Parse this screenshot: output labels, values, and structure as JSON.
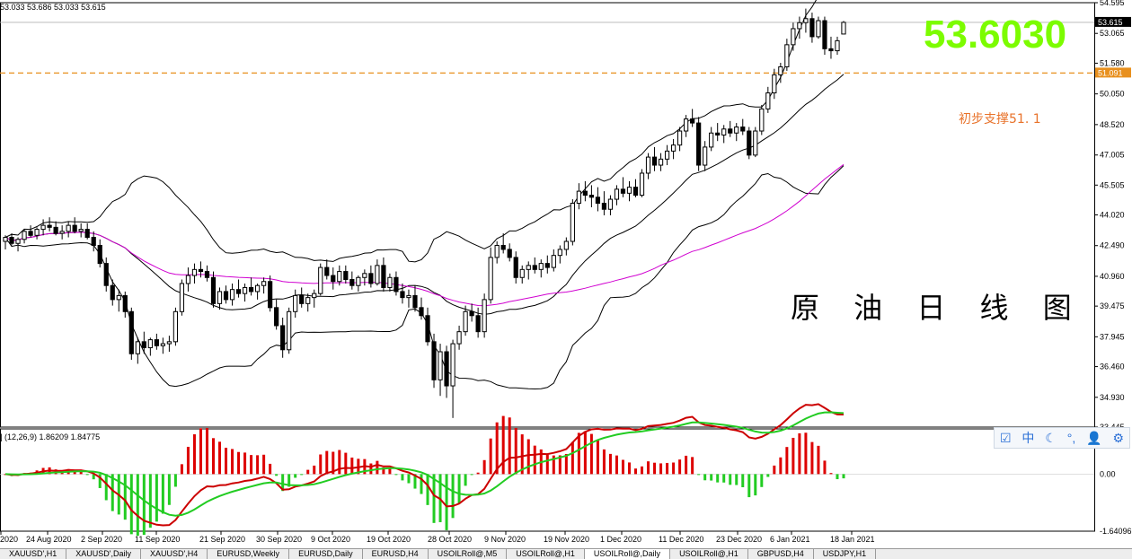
{
  "header": {
    "ohlc": "53.033 53.686 53.033 53.615",
    "macd": "(12,26,9) 1.86209 1.84775"
  },
  "overlay": {
    "big_price": "53.6030",
    "support_note": "初步支撑51. 1",
    "chart_title_cn": "原 油 日 线 图"
  },
  "colors": {
    "background": "#ffffff",
    "candle": "#000000",
    "bollinger": "#000000",
    "ma": "#d000d0",
    "support_line": "#e8901e",
    "macd_fast": "#cc0000",
    "macd_signal": "#22cc22",
    "hist_pos": "#dd0000",
    "hist_neg": "#22cc22",
    "big_price": "#7cfc00"
  },
  "toolbar": {
    "icons": [
      "checkbox-icon",
      "chinese-input-icon",
      "moon-icon",
      "punctuation-icon",
      "user-icon",
      "settings-icon"
    ],
    "labels": [
      "☑",
      "中",
      "☾",
      "°,",
      "👤",
      "⚙"
    ]
  },
  "tabs": [
    "XAUUSD',H1",
    "XAUUSD',Daily",
    "XAUUSD',H4",
    "EURUSD,Weekly",
    "EURUSD,Daily",
    "EURUSD,H4",
    "USOILRoll@,M5",
    "USOILRoll@,H1",
    "USOILRoll@,Daily",
    "USOILRoll@,H1",
    "GBPUSD,H4",
    "USDJPY,H1"
  ],
  "active_tab": 8,
  "chart_data": {
    "type": "candlestick",
    "price_axis": {
      "ticks": [
        "54.595",
        "53.065",
        "51.580",
        "50.050",
        "48.520",
        "47.005",
        "45.505",
        "44.020",
        "42.490",
        "40.960",
        "39.475",
        "37.945",
        "36.460",
        "34.930",
        "33.445"
      ],
      "range": [
        33.445,
        54.595
      ],
      "current_price": "53.615",
      "support_price": "51.091"
    },
    "macd_axis": {
      "ticks": [
        "0.00",
        "-1.64096"
      ]
    },
    "x_labels": [
      "2020",
      "24 Aug 2020",
      "2 Sep 2020",
      "11 Sep 2020",
      "21 Sep 2020",
      "30 Sep 2020",
      "9 Oct 2020",
      "19 Oct 2020",
      "28 Oct 2020",
      "9 Nov 2020",
      "19 Nov 2020",
      "1 Dec 2020",
      "11 Dec 2020",
      "23 Dec 2020",
      "6 Jan 2021",
      "18 Jan 2021"
    ],
    "candles": [
      [
        42.7,
        43.0,
        42.3,
        42.9
      ],
      [
        42.9,
        43.1,
        42.5,
        42.6
      ],
      [
        42.6,
        42.9,
        42.2,
        42.8
      ],
      [
        42.8,
        43.3,
        42.6,
        43.2
      ],
      [
        43.2,
        43.5,
        42.9,
        43.0
      ],
      [
        43.0,
        43.4,
        42.8,
        43.3
      ],
      [
        43.3,
        43.8,
        43.0,
        43.5
      ],
      [
        43.5,
        43.9,
        43.2,
        43.4
      ],
      [
        43.4,
        43.7,
        43.0,
        43.1
      ],
      [
        43.1,
        43.5,
        42.8,
        43.2
      ],
      [
        43.2,
        43.7,
        42.9,
        43.5
      ],
      [
        43.5,
        43.9,
        43.1,
        43.2
      ],
      [
        43.2,
        43.6,
        42.9,
        43.3
      ],
      [
        43.3,
        43.6,
        42.8,
        42.9
      ],
      [
        42.9,
        43.2,
        42.2,
        42.5
      ],
      [
        42.5,
        42.8,
        41.4,
        41.6
      ],
      [
        41.6,
        41.9,
        40.2,
        40.5
      ],
      [
        40.5,
        40.8,
        39.5,
        39.8
      ],
      [
        39.8,
        40.3,
        39.2,
        40.0
      ],
      [
        40.0,
        40.2,
        38.9,
        39.2
      ],
      [
        39.2,
        39.4,
        36.8,
        37.1
      ],
      [
        37.1,
        37.9,
        36.6,
        37.7
      ],
      [
        37.7,
        38.2,
        37.1,
        37.4
      ],
      [
        37.4,
        37.9,
        37.0,
        37.8
      ],
      [
        37.8,
        38.1,
        37.3,
        37.5
      ],
      [
        37.5,
        37.9,
        37.1,
        37.6
      ],
      [
        37.6,
        38.0,
        37.2,
        37.7
      ],
      [
        37.7,
        39.4,
        37.5,
        39.2
      ],
      [
        39.2,
        40.8,
        39.0,
        40.6
      ],
      [
        40.6,
        41.4,
        40.2,
        41.0
      ],
      [
        41.0,
        41.6,
        40.6,
        41.3
      ],
      [
        41.3,
        41.7,
        40.9,
        41.2
      ],
      [
        41.2,
        41.5,
        40.7,
        40.9
      ],
      [
        40.9,
        41.2,
        39.4,
        39.6
      ],
      [
        39.6,
        40.4,
        39.3,
        40.2
      ],
      [
        40.2,
        40.5,
        39.6,
        39.8
      ],
      [
        39.8,
        40.6,
        39.5,
        40.3
      ],
      [
        40.3,
        40.8,
        39.9,
        40.1
      ],
      [
        40.1,
        40.6,
        39.7,
        40.4
      ],
      [
        40.4,
        40.9,
        40.0,
        40.2
      ],
      [
        40.2,
        40.6,
        39.8,
        40.5
      ],
      [
        40.5,
        40.9,
        40.1,
        40.7
      ],
      [
        40.7,
        41.0,
        39.2,
        39.4
      ],
      [
        39.4,
        39.8,
        38.3,
        38.5
      ],
      [
        38.5,
        38.9,
        36.9,
        37.3
      ],
      [
        37.3,
        39.4,
        37.1,
        39.2
      ],
      [
        39.2,
        40.3,
        38.9,
        40.0
      ],
      [
        40.0,
        40.4,
        39.4,
        39.6
      ],
      [
        39.6,
        40.1,
        39.2,
        39.9
      ],
      [
        39.9,
        40.3,
        39.4,
        40.1
      ],
      [
        40.1,
        41.6,
        40.0,
        41.4
      ],
      [
        41.4,
        41.8,
        40.8,
        41.0
      ],
      [
        41.0,
        41.4,
        40.3,
        40.7
      ],
      [
        40.7,
        41.5,
        40.5,
        41.2
      ],
      [
        41.2,
        41.5,
        40.6,
        40.8
      ],
      [
        40.8,
        41.2,
        40.3,
        40.5
      ],
      [
        40.5,
        41.0,
        40.2,
        40.9
      ],
      [
        40.9,
        41.3,
        40.5,
        41.1
      ],
      [
        41.1,
        41.5,
        40.4,
        40.6
      ],
      [
        40.6,
        41.8,
        40.5,
        41.5
      ],
      [
        41.5,
        41.9,
        40.2,
        40.4
      ],
      [
        40.4,
        41.1,
        40.2,
        40.9
      ],
      [
        40.9,
        41.2,
        40.0,
        40.2
      ],
      [
        40.2,
        40.6,
        39.6,
        39.9
      ],
      [
        39.9,
        40.3,
        39.4,
        40.0
      ],
      [
        40.0,
        40.5,
        39.2,
        39.4
      ],
      [
        39.4,
        39.9,
        38.8,
        39.0
      ],
      [
        39.0,
        39.4,
        37.5,
        37.7
      ],
      [
        37.7,
        38.1,
        35.4,
        35.8
      ],
      [
        35.8,
        37.6,
        35.0,
        37.2
      ],
      [
        37.2,
        37.5,
        34.9,
        35.5
      ],
      [
        35.5,
        37.8,
        33.9,
        37.6
      ],
      [
        37.6,
        38.5,
        37.3,
        38.2
      ],
      [
        38.2,
        39.5,
        38.0,
        39.2
      ],
      [
        39.2,
        39.6,
        38.7,
        39.0
      ],
      [
        39.0,
        39.4,
        37.9,
        38.2
      ],
      [
        38.2,
        40.1,
        37.9,
        39.8
      ],
      [
        39.8,
        42.4,
        39.6,
        41.9
      ],
      [
        41.9,
        42.7,
        41.6,
        42.5
      ],
      [
        42.5,
        43.1,
        42.1,
        42.3
      ],
      [
        42.3,
        42.6,
        41.7,
        41.9
      ],
      [
        41.9,
        42.2,
        40.6,
        40.9
      ],
      [
        40.9,
        41.5,
        40.6,
        41.3
      ],
      [
        41.3,
        41.7,
        40.8,
        41.5
      ],
      [
        41.5,
        41.9,
        41.1,
        41.3
      ],
      [
        41.3,
        41.8,
        40.9,
        41.6
      ],
      [
        41.6,
        42.0,
        41.1,
        41.4
      ],
      [
        41.4,
        42.3,
        41.2,
        42.0
      ],
      [
        42.0,
        42.5,
        41.6,
        42.3
      ],
      [
        42.3,
        42.9,
        42.0,
        42.7
      ],
      [
        42.7,
        44.8,
        42.5,
        44.6
      ],
      [
        44.6,
        45.6,
        44.3,
        45.2
      ],
      [
        45.2,
        45.7,
        44.7,
        45.0
      ],
      [
        45.0,
        45.5,
        44.4,
        44.9
      ],
      [
        44.9,
        45.4,
        44.2,
        44.6
      ],
      [
        44.6,
        45.2,
        44.0,
        44.3
      ],
      [
        44.3,
        45.0,
        44.0,
        44.8
      ],
      [
        44.8,
        45.5,
        44.5,
        45.3
      ],
      [
        45.3,
        45.9,
        44.9,
        45.1
      ],
      [
        45.1,
        45.7,
        44.7,
        45.4
      ],
      [
        45.4,
        45.8,
        44.9,
        45.0
      ],
      [
        45.0,
        46.3,
        44.9,
        46.1
      ],
      [
        46.1,
        47.1,
        45.8,
        46.9
      ],
      [
        46.9,
        47.4,
        46.2,
        46.5
      ],
      [
        46.5,
        47.1,
        46.2,
        46.8
      ],
      [
        46.8,
        47.5,
        46.5,
        47.2
      ],
      [
        47.2,
        47.8,
        46.8,
        47.5
      ],
      [
        47.5,
        48.4,
        47.2,
        48.2
      ],
      [
        48.2,
        49.0,
        47.9,
        48.8
      ],
      [
        48.8,
        49.3,
        48.4,
        48.6
      ],
      [
        48.6,
        48.9,
        46.2,
        46.5
      ],
      [
        46.5,
        47.7,
        46.2,
        47.4
      ],
      [
        47.4,
        48.4,
        47.2,
        48.1
      ],
      [
        48.1,
        48.6,
        47.7,
        48.0
      ],
      [
        48.0,
        48.5,
        47.6,
        48.3
      ],
      [
        48.3,
        48.7,
        47.9,
        48.1
      ],
      [
        48.1,
        48.6,
        47.7,
        48.4
      ],
      [
        48.4,
        48.8,
        48.0,
        48.2
      ],
      [
        48.2,
        48.4,
        46.8,
        47.0
      ],
      [
        47.0,
        48.4,
        46.9,
        48.2
      ],
      [
        48.2,
        49.5,
        48.0,
        49.3
      ],
      [
        49.3,
        50.4,
        49.1,
        50.1
      ],
      [
        50.1,
        51.3,
        49.8,
        51.0
      ],
      [
        51.0,
        51.6,
        50.6,
        51.4
      ],
      [
        51.4,
        52.8,
        51.2,
        52.5
      ],
      [
        52.5,
        53.6,
        52.2,
        53.3
      ],
      [
        53.3,
        53.9,
        52.8,
        53.6
      ],
      [
        53.6,
        54.3,
        53.1,
        53.8
      ],
      [
        53.8,
        54.1,
        52.6,
        52.9
      ],
      [
        52.9,
        53.9,
        52.8,
        53.7
      ],
      [
        53.7,
        53.9,
        52.0,
        52.3
      ],
      [
        52.3,
        52.9,
        51.8,
        52.2
      ],
      [
        52.2,
        52.9,
        52.0,
        52.7
      ],
      [
        53.033,
        53.686,
        53.033,
        53.615
      ]
    ],
    "support_level": 51.09,
    "macd_range": [
      -1.64096,
      1.3
    ]
  }
}
